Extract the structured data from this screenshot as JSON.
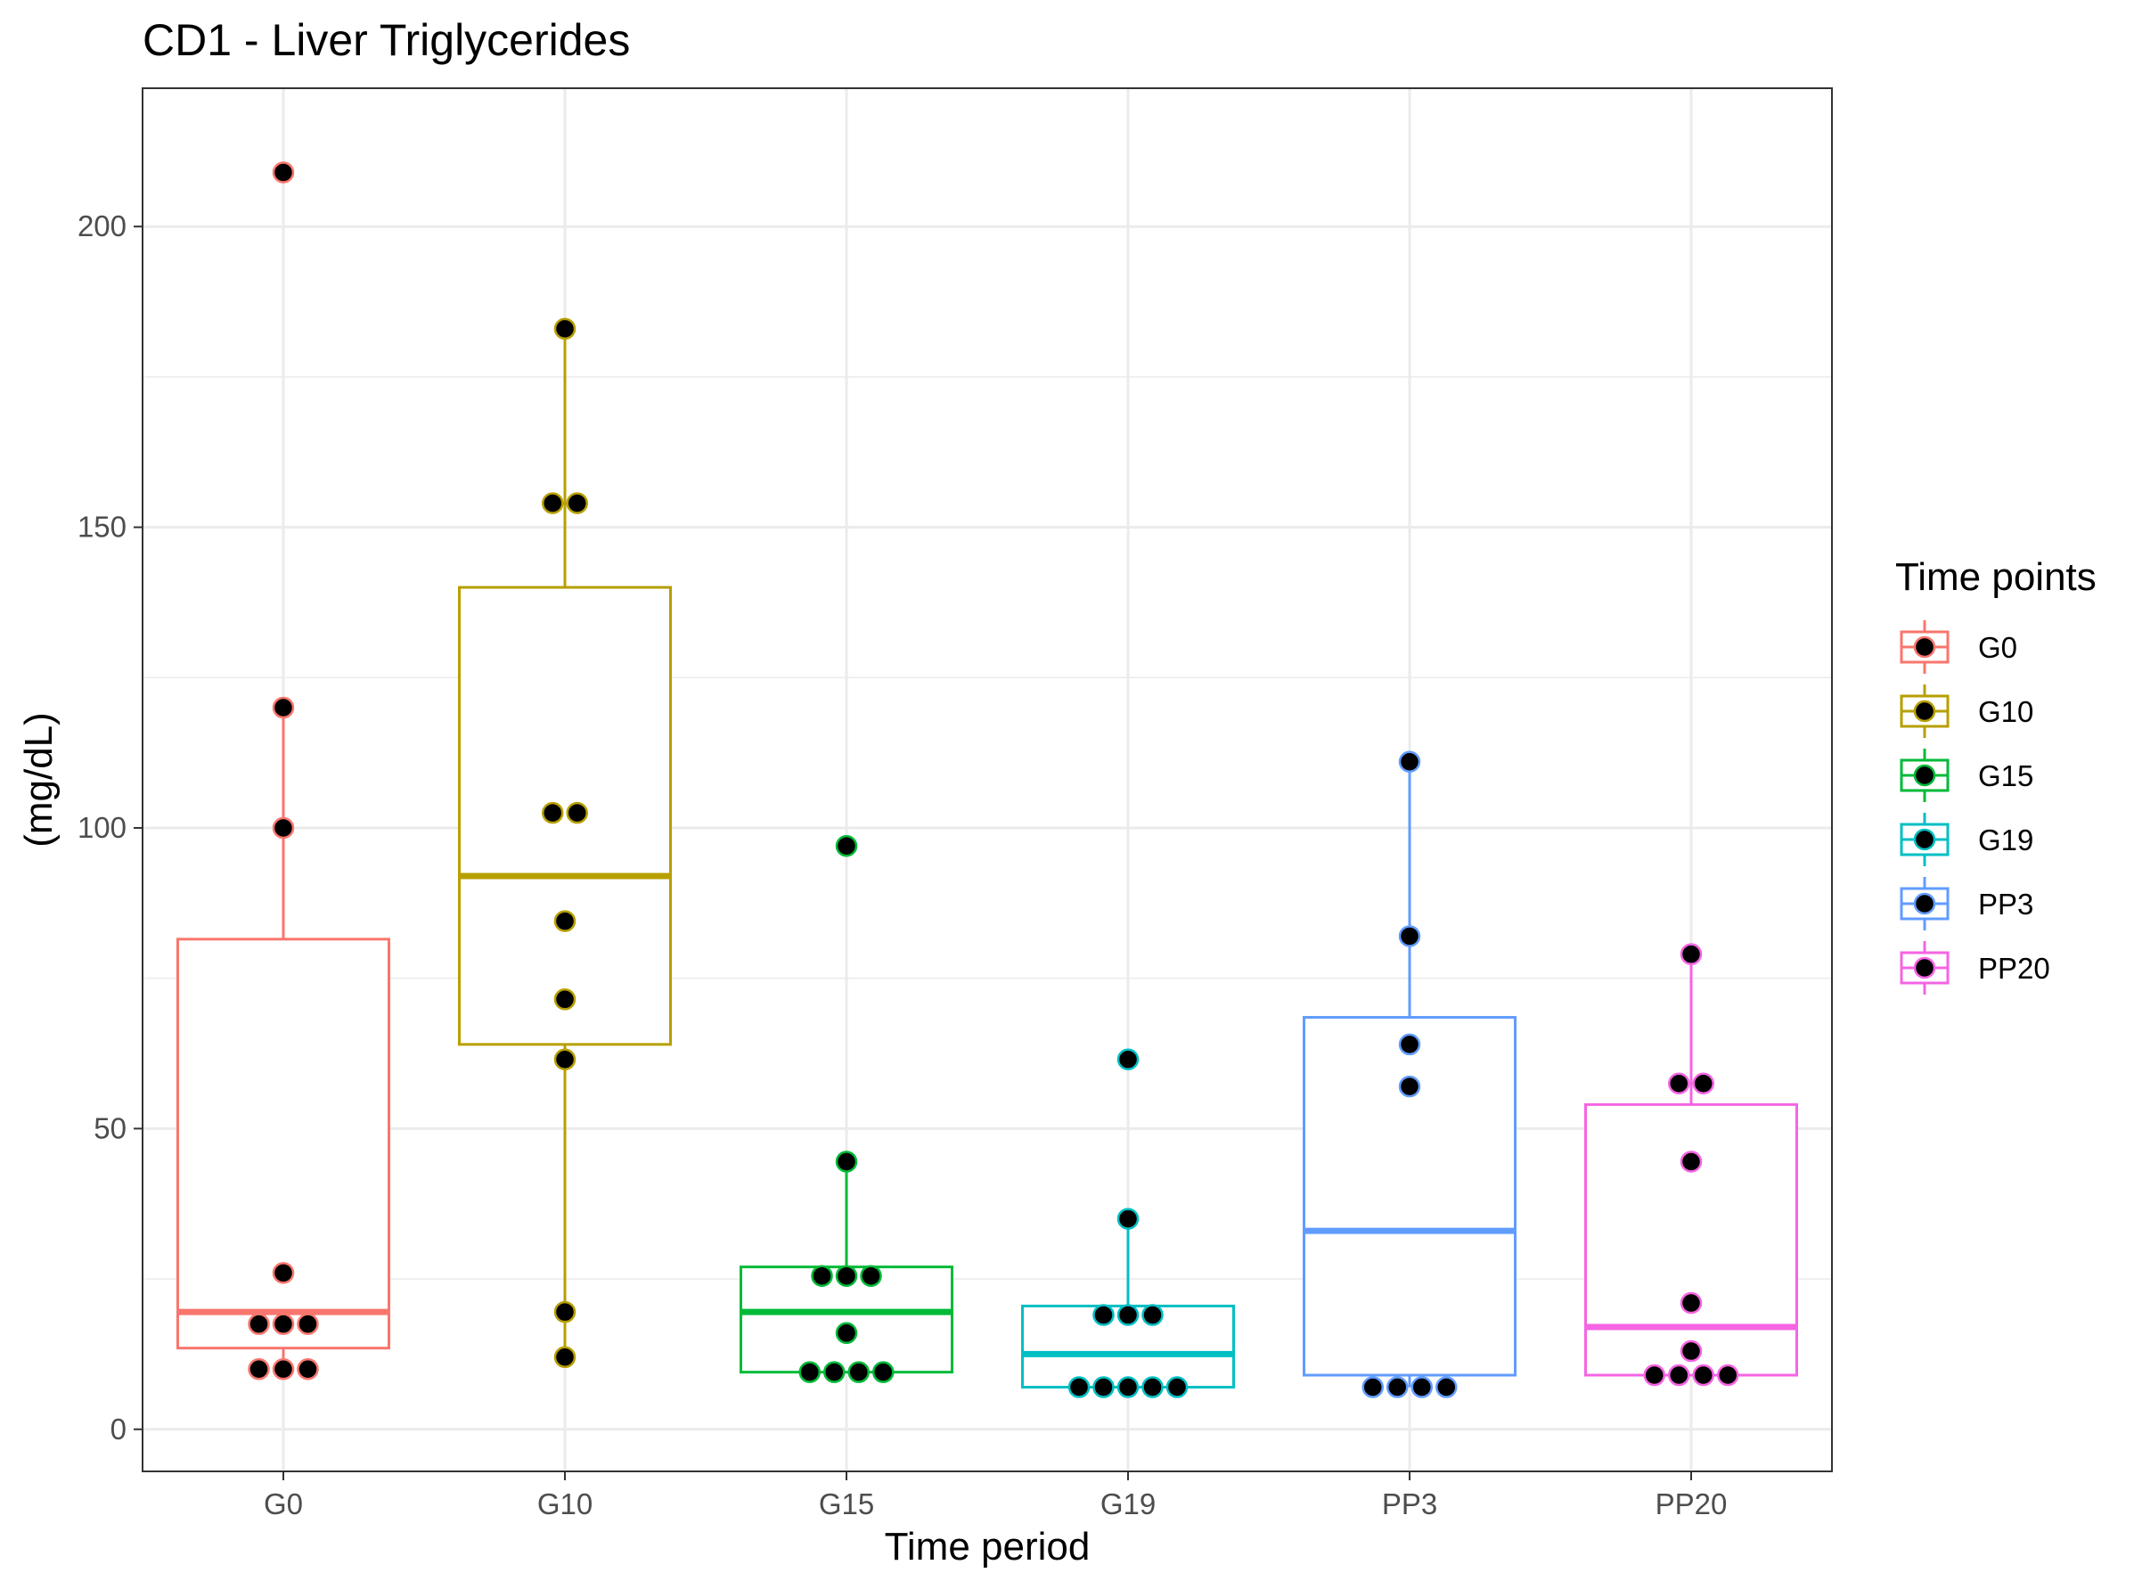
{
  "chart_data": {
    "type": "box",
    "title": "CD1 - Liver Triglycerides",
    "xlabel": "Time period",
    "ylabel": "(mg/dL)",
    "ylim": [
      -7,
      223
    ],
    "yticks": [
      0,
      50,
      100,
      150,
      200
    ],
    "grid": true,
    "legend": {
      "title": "Time points",
      "position": "right"
    },
    "categories": [
      "G0",
      "G10",
      "G15",
      "G19",
      "PP3",
      "PP20"
    ],
    "series": [
      {
        "name": "G0",
        "color": "#F8766D",
        "box": {
          "lower_whisker": 10,
          "q1": 13.5,
          "median": 19.5,
          "q3": 81.5,
          "upper_whisker": 120
        },
        "points": [
          209,
          120,
          100,
          26,
          17.5,
          17.5,
          17.5,
          10,
          10,
          10
        ]
      },
      {
        "name": "G10",
        "color": "#B79F00",
        "box": {
          "lower_whisker": 12,
          "q1": 64,
          "median": 92,
          "q3": 140,
          "upper_whisker": 183
        },
        "points": [
          183,
          154,
          154,
          102.5,
          102.5,
          84.5,
          71.5,
          61.5,
          19.5,
          12
        ]
      },
      {
        "name": "G15",
        "color": "#00BA38",
        "box": {
          "lower_whisker": 9.5,
          "q1": 9.5,
          "median": 19.5,
          "q3": 27,
          "upper_whisker": 44.5
        },
        "points": [
          97,
          44.5,
          25.5,
          25.5,
          25.5,
          16,
          9.5,
          9.5,
          9.5,
          9.5
        ]
      },
      {
        "name": "G19",
        "color": "#00BFC4",
        "box": {
          "lower_whisker": 7,
          "q1": 7,
          "median": 12.5,
          "q3": 20.5,
          "upper_whisker": 35
        },
        "points": [
          61.5,
          35,
          19,
          19,
          19,
          7,
          7,
          7,
          7,
          7
        ]
      },
      {
        "name": "PP3",
        "color": "#619CFF",
        "box": {
          "lower_whisker": 7,
          "q1": 9,
          "median": 33,
          "q3": 68.5,
          "upper_whisker": 111
        },
        "points": [
          111,
          82,
          64,
          57,
          7,
          7,
          7,
          7
        ]
      },
      {
        "name": "PP20",
        "color": "#F564E3",
        "box": {
          "lower_whisker": 9,
          "q1": 9,
          "median": 17,
          "q3": 54,
          "upper_whisker": 79
        },
        "points": [
          79,
          57.5,
          57.5,
          44.5,
          21,
          13,
          9,
          9,
          9,
          9
        ]
      }
    ]
  }
}
